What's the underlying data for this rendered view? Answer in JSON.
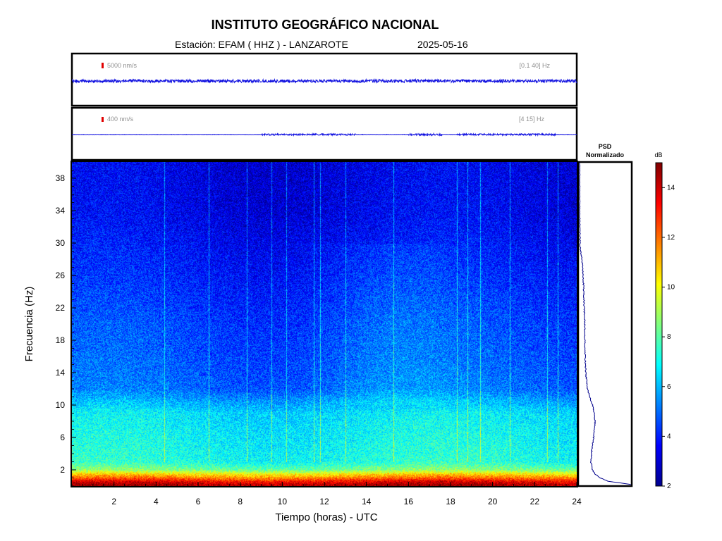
{
  "header": {
    "title": "INSTITUTO GEOGRÁFICO NACIONAL",
    "station": "Estación:  EFAM ( HHZ ) - LANZAROTE",
    "date": "2025-05-16"
  },
  "chart_data": [
    {
      "type": "line",
      "panel": "seismogram-broadband",
      "scale_label": "5000 nm/s",
      "band_label": "[0.1 40] Hz",
      "xlim": [
        0,
        24
      ],
      "trace": "continuous low-amplitude noise, nearly constant over the day"
    },
    {
      "type": "line",
      "panel": "seismogram-filtered",
      "scale_label": "400 nm/s",
      "band_label": "[4 15] Hz",
      "xlim": [
        0,
        24
      ],
      "trace": "thin trace with small bursts near 9-13 h, 16-17.5 h, 18-23 h"
    },
    {
      "type": "heatmap",
      "panel": "spectrogram",
      "xlabel": "Tiempo (horas) - UTC",
      "ylabel": "Frecuencia  (Hz)",
      "xlim": [
        0,
        24
      ],
      "ylim": [
        0,
        40
      ],
      "xticks": [
        2,
        4,
        6,
        8,
        10,
        12,
        14,
        16,
        18,
        20,
        22,
        24
      ],
      "yticks": [
        2,
        6,
        10,
        14,
        18,
        22,
        26,
        30,
        34,
        38
      ],
      "colormap": "jet",
      "colorbar": {
        "label": "dB",
        "range": [
          2,
          15
        ],
        "ticks": [
          2,
          4,
          6,
          8,
          10,
          12,
          14
        ]
      },
      "level_profile_hz_db": [
        [
          0.2,
          14.5
        ],
        [
          0.6,
          13.5
        ],
        [
          1.0,
          12.0
        ],
        [
          1.5,
          10.5
        ],
        [
          2.0,
          8.5
        ],
        [
          3.0,
          7.2
        ],
        [
          5.0,
          7.0
        ],
        [
          7.0,
          6.8
        ],
        [
          9.0,
          6.6
        ],
        [
          10.5,
          5.8
        ],
        [
          12.0,
          5.0
        ],
        [
          16.0,
          4.7
        ],
        [
          20.0,
          4.5
        ],
        [
          26.0,
          4.0
        ],
        [
          30.0,
          3.7
        ],
        [
          34.0,
          3.4
        ],
        [
          40.0,
          3.3
        ]
      ],
      "vertical_streaks_hours": [
        4.4,
        6.5,
        8.3,
        9.5,
        10.2,
        11.5,
        11.8,
        13.0,
        15.3,
        18.3,
        18.8,
        19.4,
        20.8,
        22.6,
        23.1
      ]
    },
    {
      "type": "line",
      "panel": "psd",
      "title": "PSD\nNormalizado",
      "ylim": [
        0,
        40
      ],
      "profile_hz_norm": [
        [
          0.2,
          1.0
        ],
        [
          0.6,
          0.55
        ],
        [
          1.0,
          0.4
        ],
        [
          1.5,
          0.3
        ],
        [
          2.0,
          0.25
        ],
        [
          3.0,
          0.22
        ],
        [
          4.0,
          0.23
        ],
        [
          5.0,
          0.25
        ],
        [
          6.0,
          0.27
        ],
        [
          7.0,
          0.29
        ],
        [
          8.0,
          0.3
        ],
        [
          9.0,
          0.28
        ],
        [
          10.0,
          0.25
        ],
        [
          11.0,
          0.2
        ],
        [
          12.0,
          0.15
        ],
        [
          14.0,
          0.12
        ],
        [
          16.0,
          0.11
        ],
        [
          18.0,
          0.1
        ],
        [
          20.0,
          0.1
        ],
        [
          22.0,
          0.09
        ],
        [
          24.0,
          0.08
        ],
        [
          26.0,
          0.07
        ],
        [
          28.0,
          0.05
        ],
        [
          29.0,
          0.02
        ],
        [
          30.0,
          0.01
        ],
        [
          34.0,
          0.0
        ],
        [
          40.0,
          0.0
        ]
      ]
    }
  ]
}
